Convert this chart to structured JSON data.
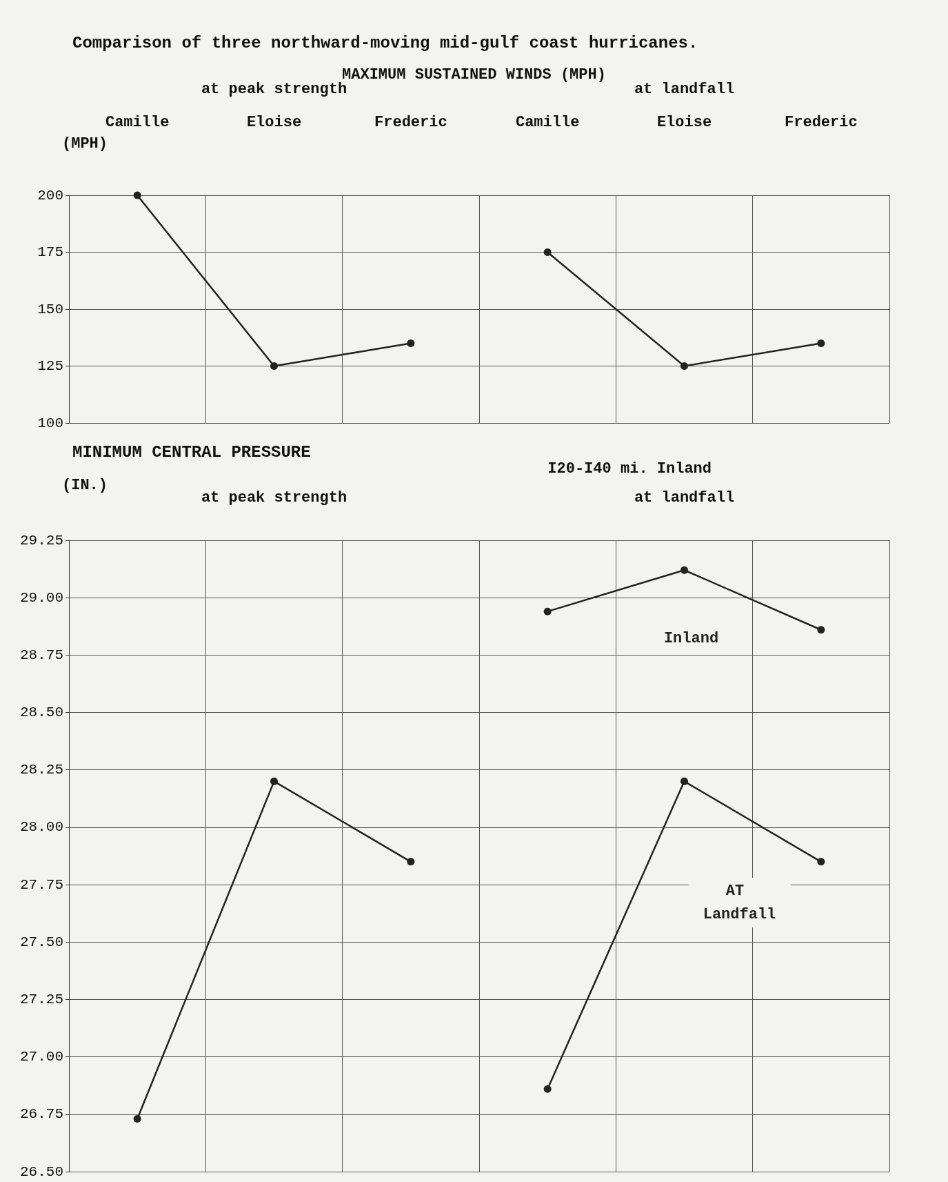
{
  "chart_data": [
    {
      "type": "line",
      "title": "Comparison of three northward-moving mid-gulf coast hurricanes.",
      "subtitle": "MAXIMUM SUSTAINED WINDS (MPH)",
      "ylabel": "(MPH)",
      "categories": [
        "Camille",
        "Eloise",
        "Frederic",
        "Camille",
        "Eloise",
        "Frederic"
      ],
      "series": [
        {
          "color": "#222222",
          "values": [
            200,
            125,
            135,
            null,
            null,
            null
          ]
        },
        {
          "color": "#222222",
          "values": [
            null,
            null,
            null,
            175,
            125,
            135
          ]
        }
      ],
      "annotations": [
        "at peak strength",
        "at landfall"
      ],
      "ylim": [
        100,
        200
      ],
      "yticks": [
        100,
        125,
        150,
        175,
        200
      ],
      "grid": true,
      "marker": "circle",
      "line_style": "solid"
    },
    {
      "type": "line",
      "title": "MINIMUM CENTRAL PRESSURE",
      "ylabel": "(IN.)",
      "categories": [
        "Camille",
        "Eloise",
        "Frederic",
        "Camille",
        "Eloise",
        "Frederic"
      ],
      "tick_labels": "y",
      "series": [
        {
          "color": "#222222",
          "values": [
            26.73,
            28.2,
            27.85,
            null,
            null,
            null
          ]
        },
        {
          "name": "Inland",
          "color": "#222222",
          "values": [
            null,
            null,
            null,
            28.94,
            29.12,
            28.86
          ]
        },
        {
          "name": "AT Landfall",
          "color": "#222222",
          "values": [
            null,
            null,
            null,
            26.86,
            28.2,
            27.85
          ]
        }
      ],
      "annotations": [
        "at peak strength",
        "I20-I40 mi. Inland",
        "at landfall"
      ],
      "ylim": [
        26.5,
        29.25
      ],
      "yticks": [
        {
          "value": 26.5,
          "label": "26.50"
        },
        {
          "value": 26.75,
          "label": "26.75"
        },
        {
          "value": 27,
          "label": "27.00"
        },
        {
          "value": 27.25,
          "label": "27.25"
        },
        {
          "value": 27.5,
          "label": "27.50"
        },
        {
          "value": 27.75,
          "label": "27.75"
        },
        {
          "value": 28,
          "label": "28.00"
        },
        {
          "value": 28.25,
          "label": "28.25"
        },
        {
          "value": 28.5,
          "label": "28.50"
        },
        {
          "value": 28.75,
          "label": "28.75"
        },
        {
          "value": 29,
          "label": "29.00"
        },
        {
          "value": 29.25,
          "label": "29.25"
        }
      ],
      "grid": true,
      "marker": "circle",
      "line_style": "solid"
    }
  ]
}
